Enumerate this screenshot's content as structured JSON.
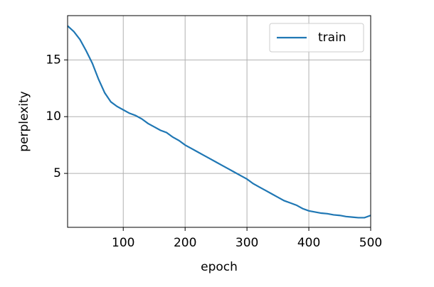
{
  "chart_data": {
    "type": "line",
    "xlabel": "epoch",
    "ylabel": "perplexity",
    "x": [
      10,
      20,
      30,
      40,
      50,
      60,
      70,
      80,
      90,
      100,
      110,
      120,
      130,
      140,
      150,
      160,
      170,
      180,
      190,
      200,
      210,
      220,
      230,
      240,
      250,
      260,
      270,
      280,
      290,
      300,
      310,
      320,
      330,
      340,
      350,
      360,
      370,
      380,
      390,
      400,
      410,
      420,
      430,
      440,
      450,
      460,
      470,
      480,
      490,
      500
    ],
    "series": [
      {
        "name": "train",
        "color": "#1f77b4",
        "values": [
          18.0,
          17.5,
          16.8,
          15.8,
          14.7,
          13.3,
          12.1,
          11.3,
          10.9,
          10.6,
          10.3,
          10.1,
          9.8,
          9.4,
          9.1,
          8.8,
          8.6,
          8.2,
          7.9,
          7.5,
          7.2,
          6.9,
          6.6,
          6.3,
          6.0,
          5.7,
          5.4,
          5.1,
          4.8,
          4.5,
          4.1,
          3.8,
          3.5,
          3.2,
          2.9,
          2.6,
          2.4,
          2.2,
          1.9,
          1.7,
          1.6,
          1.5,
          1.45,
          1.35,
          1.3,
          1.2,
          1.15,
          1.1,
          1.1,
          1.3
        ]
      }
    ],
    "xlim": [
      10,
      500
    ],
    "ylim": [
      0.25,
      18.9
    ],
    "xticks": [
      100,
      200,
      300,
      400,
      500
    ],
    "yticks": [
      5,
      10,
      15
    ],
    "grid": true,
    "legend": "upper right"
  }
}
